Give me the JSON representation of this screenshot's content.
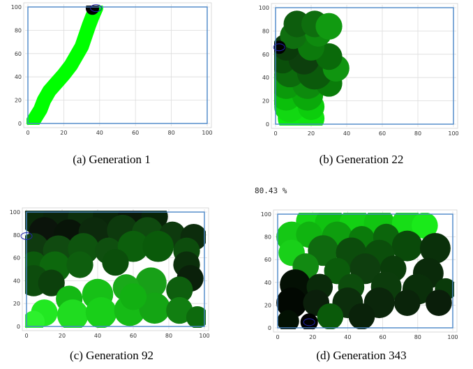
{
  "chart_data": [
    {
      "type": "scatter",
      "caption": "(a) Generation 1",
      "xlim": [
        0,
        100
      ],
      "ylim": [
        0,
        100
      ],
      "xticks": [
        0,
        20,
        40,
        60,
        80,
        100
      ],
      "yticks": [
        0,
        20,
        40,
        60,
        80,
        100
      ],
      "grid": true,
      "border_color": "#4a86c8",
      "robot": [
        38,
        99
      ],
      "blobs": [
        {
          "path": [
            [
              3,
              2
            ],
            [
              7,
              12
            ],
            [
              9,
              20
            ],
            [
              12,
              28
            ],
            [
              16,
              35
            ],
            [
              20,
              42
            ],
            [
              24,
              50
            ],
            [
              27,
              58
            ],
            [
              30,
              66
            ],
            [
              32,
              75
            ],
            [
              34,
              84
            ],
            [
              36,
              92
            ],
            [
              38,
              99
            ]
          ],
          "r": 4,
          "color": "#00ff00"
        }
      ],
      "visits": [
        {
          "x": 36,
          "y": 99,
          "r": 3,
          "color": "#000000"
        }
      ]
    },
    {
      "type": "scatter",
      "caption": "(b) Generation 22",
      "xlim": [
        0,
        100
      ],
      "ylim": [
        0,
        100
      ],
      "xticks": [
        0,
        20,
        40,
        60,
        80,
        100
      ],
      "yticks": [
        0,
        20,
        40,
        60,
        80,
        100
      ],
      "grid": true,
      "border_color": "#4a86c8",
      "robot": [
        2,
        66
      ],
      "blobs": [],
      "visits": [
        {
          "x": 10,
          "y": 5,
          "r": 7,
          "color": "#0aef0a"
        },
        {
          "x": 20,
          "y": 5,
          "r": 6,
          "color": "#10e510"
        },
        {
          "x": 8,
          "y": 15,
          "r": 7,
          "color": "#12d812"
        },
        {
          "x": 20,
          "y": 15,
          "r": 6,
          "color": "#0ccd0c"
        },
        {
          "x": 6,
          "y": 25,
          "r": 7,
          "color": "#0bbf0b"
        },
        {
          "x": 18,
          "y": 25,
          "r": 7,
          "color": "#0aa90a"
        },
        {
          "x": 6,
          "y": 35,
          "r": 7,
          "color": "#0b9a0b"
        },
        {
          "x": 18,
          "y": 35,
          "r": 7,
          "color": "#0d8a0d"
        },
        {
          "x": 30,
          "y": 35,
          "r": 6,
          "color": "#0a7c0a"
        },
        {
          "x": 8,
          "y": 45,
          "r": 7,
          "color": "#0c6b0c"
        },
        {
          "x": 22,
          "y": 45,
          "r": 8,
          "color": "#0b5a0b"
        },
        {
          "x": 34,
          "y": 48,
          "r": 6,
          "color": "#109510"
        },
        {
          "x": 4,
          "y": 55,
          "r": 6,
          "color": "#0a4f0a"
        },
        {
          "x": 16,
          "y": 56,
          "r": 7,
          "color": "#0d3f0d"
        },
        {
          "x": 30,
          "y": 58,
          "r": 6,
          "color": "#0a6a0a"
        },
        {
          "x": 6,
          "y": 66,
          "r": 6,
          "color": "#0a3a0a"
        },
        {
          "x": 20,
          "y": 66,
          "r": 6,
          "color": "#0c7a0c"
        },
        {
          "x": 10,
          "y": 76,
          "r": 6,
          "color": "#0f6f0f"
        },
        {
          "x": 24,
          "y": 78,
          "r": 6,
          "color": "#0e8a0e"
        },
        {
          "x": 12,
          "y": 86,
          "r": 6,
          "color": "#0d5d0d"
        },
        {
          "x": 22,
          "y": 86,
          "r": 6,
          "color": "#0e6e0e"
        },
        {
          "x": 30,
          "y": 84,
          "r": 6,
          "color": "#119a11"
        },
        {
          "x": 2,
          "y": 66,
          "r": 3,
          "color": "#000000"
        }
      ]
    },
    {
      "type": "scatter",
      "caption": "(c) Generation 92",
      "xlim": [
        0,
        100
      ],
      "ylim": [
        0,
        100
      ],
      "xticks": [
        0,
        20,
        40,
        60,
        80,
        100
      ],
      "yticks": [
        0,
        20,
        40,
        60,
        80,
        100
      ],
      "grid": true,
      "border_color": "#4a86c8",
      "robot": [
        0,
        79
      ],
      "blobs": [],
      "visits": [
        {
          "x": 5,
          "y": 95,
          "r": 7,
          "color": "#0a2a0a"
        },
        {
          "x": 18,
          "y": 95,
          "r": 7,
          "color": "#0b240b"
        },
        {
          "x": 32,
          "y": 95,
          "r": 7,
          "color": "#0c300c"
        },
        {
          "x": 46,
          "y": 96,
          "r": 7,
          "color": "#0a260a"
        },
        {
          "x": 60,
          "y": 96,
          "r": 7,
          "color": "#0a1a0a"
        },
        {
          "x": 72,
          "y": 96,
          "r": 6,
          "color": "#082408"
        },
        {
          "x": 10,
          "y": 82,
          "r": 7,
          "color": "#0b140b"
        },
        {
          "x": 24,
          "y": 80,
          "r": 7,
          "color": "#081408"
        },
        {
          "x": 38,
          "y": 82,
          "r": 7,
          "color": "#0c2a0c"
        },
        {
          "x": 54,
          "y": 84,
          "r": 7,
          "color": "#0d3a0d"
        },
        {
          "x": 68,
          "y": 82,
          "r": 7,
          "color": "#0f4a0f"
        },
        {
          "x": 82,
          "y": 80,
          "r": 6,
          "color": "#0e3a0e"
        },
        {
          "x": 94,
          "y": 78,
          "r": 6,
          "color": "#0c2c0c"
        },
        {
          "x": 4,
          "y": 68,
          "r": 7,
          "color": "#0f3a0f"
        },
        {
          "x": 18,
          "y": 66,
          "r": 7,
          "color": "#104a10"
        },
        {
          "x": 32,
          "y": 68,
          "r": 7,
          "color": "#0e540e"
        },
        {
          "x": 46,
          "y": 66,
          "r": 6,
          "color": "#0f4f0f"
        },
        {
          "x": 60,
          "y": 70,
          "r": 7,
          "color": "#0c5f0c"
        },
        {
          "x": 74,
          "y": 70,
          "r": 7,
          "color": "#0a5a0a"
        },
        {
          "x": 90,
          "y": 66,
          "r": 6,
          "color": "#0d4d0d"
        },
        {
          "x": 4,
          "y": 54,
          "r": 6,
          "color": "#0c5a0c"
        },
        {
          "x": 16,
          "y": 52,
          "r": 7,
          "color": "#0d680d"
        },
        {
          "x": 30,
          "y": 54,
          "r": 6,
          "color": "#0e5e0e"
        },
        {
          "x": 50,
          "y": 56,
          "r": 6,
          "color": "#0b4e0b"
        },
        {
          "x": 90,
          "y": 54,
          "r": 6,
          "color": "#0b2f0b"
        },
        {
          "x": 4,
          "y": 40,
          "r": 7,
          "color": "#0d4c0d"
        },
        {
          "x": 14,
          "y": 38,
          "r": 6,
          "color": "#0c400c"
        },
        {
          "x": 92,
          "y": 42,
          "r": 6,
          "color": "#0a200a"
        },
        {
          "x": 86,
          "y": 32,
          "r": 6,
          "color": "#0e5e0e"
        },
        {
          "x": 70,
          "y": 38,
          "r": 7,
          "color": "#18a018"
        },
        {
          "x": 56,
          "y": 34,
          "r": 6,
          "color": "#1aaa1a"
        },
        {
          "x": 40,
          "y": 28,
          "r": 7,
          "color": "#17c017"
        },
        {
          "x": 24,
          "y": 24,
          "r": 6,
          "color": "#14b814"
        },
        {
          "x": 10,
          "y": 12,
          "r": 6,
          "color": "#22e822"
        },
        {
          "x": 26,
          "y": 10,
          "r": 7,
          "color": "#20dc20"
        },
        {
          "x": 42,
          "y": 12,
          "r": 7,
          "color": "#19cf19"
        },
        {
          "x": 58,
          "y": 14,
          "r": 7,
          "color": "#16bb16"
        },
        {
          "x": 72,
          "y": 16,
          "r": 7,
          "color": "#14a514"
        },
        {
          "x": 86,
          "y": 14,
          "r": 6,
          "color": "#117f11"
        },
        {
          "x": 96,
          "y": 8,
          "r": 5,
          "color": "#0d6a0d"
        },
        {
          "x": 60,
          "y": 26,
          "r": 6,
          "color": "#12b012"
        },
        {
          "x": 4,
          "y": 4,
          "r": 5,
          "color": "#2df02d"
        }
      ]
    },
    {
      "type": "scatter",
      "caption": "(d) Generation 343",
      "annotation": "80.43 %",
      "xlim": [
        0,
        100
      ],
      "ylim": [
        0,
        100
      ],
      "xticks": [
        0,
        20,
        40,
        60,
        80,
        100
      ],
      "yticks": [
        0,
        20,
        40,
        60,
        80,
        100
      ],
      "grid": true,
      "border_color": "#4a86c8",
      "robot": [
        18,
        5
      ],
      "blobs": [],
      "visits": [
        {
          "x": 18,
          "y": 94,
          "r": 6,
          "color": "#16d516"
        },
        {
          "x": 30,
          "y": 92,
          "r": 7,
          "color": "#10c210"
        },
        {
          "x": 44,
          "y": 92,
          "r": 7,
          "color": "#13d013"
        },
        {
          "x": 58,
          "y": 92,
          "r": 7,
          "color": "#11c511"
        },
        {
          "x": 74,
          "y": 92,
          "r": 7,
          "color": "#17dd17"
        },
        {
          "x": 84,
          "y": 90,
          "r": 6,
          "color": "#1aea1a"
        },
        {
          "x": 8,
          "y": 80,
          "r": 7,
          "color": "#15c815"
        },
        {
          "x": 18,
          "y": 82,
          "r": 6,
          "color": "#10b410"
        },
        {
          "x": 34,
          "y": 80,
          "r": 7,
          "color": "#0e9e0e"
        },
        {
          "x": 48,
          "y": 78,
          "r": 6,
          "color": "#0b7a0b"
        },
        {
          "x": 62,
          "y": 80,
          "r": 6,
          "color": "#0c650c"
        },
        {
          "x": 74,
          "y": 72,
          "r": 7,
          "color": "#0a4a0a"
        },
        {
          "x": 90,
          "y": 70,
          "r": 7,
          "color": "#0a300a"
        },
        {
          "x": 8,
          "y": 66,
          "r": 6,
          "color": "#19d019"
        },
        {
          "x": 26,
          "y": 68,
          "r": 7,
          "color": "#0f6a0f"
        },
        {
          "x": 42,
          "y": 66,
          "r": 7,
          "color": "#0c4c0c"
        },
        {
          "x": 58,
          "y": 64,
          "r": 7,
          "color": "#0b4e0b"
        },
        {
          "x": 16,
          "y": 54,
          "r": 6,
          "color": "#128a12"
        },
        {
          "x": 34,
          "y": 50,
          "r": 6,
          "color": "#0b5c0b"
        },
        {
          "x": 50,
          "y": 52,
          "r": 7,
          "color": "#0e3e0e"
        },
        {
          "x": 66,
          "y": 52,
          "r": 6,
          "color": "#0a3c0a"
        },
        {
          "x": 86,
          "y": 48,
          "r": 7,
          "color": "#0a2a0a"
        },
        {
          "x": 10,
          "y": 38,
          "r": 7,
          "color": "#041004"
        },
        {
          "x": 24,
          "y": 36,
          "r": 6,
          "color": "#0a2a0a"
        },
        {
          "x": 42,
          "y": 36,
          "r": 6,
          "color": "#0d4d0d"
        },
        {
          "x": 62,
          "y": 36,
          "r": 7,
          "color": "#0c3c0c"
        },
        {
          "x": 80,
          "y": 34,
          "r": 7,
          "color": "#0a2f0a"
        },
        {
          "x": 96,
          "y": 34,
          "r": 5,
          "color": "#0a3a0a"
        },
        {
          "x": 8,
          "y": 22,
          "r": 7,
          "color": "#020802"
        },
        {
          "x": 22,
          "y": 22,
          "r": 6,
          "color": "#0b1f0b"
        },
        {
          "x": 40,
          "y": 22,
          "r": 7,
          "color": "#0c2e0c"
        },
        {
          "x": 58,
          "y": 22,
          "r": 7,
          "color": "#0b260b"
        },
        {
          "x": 74,
          "y": 22,
          "r": 6,
          "color": "#0a240a"
        },
        {
          "x": 92,
          "y": 22,
          "r": 6,
          "color": "#0a1e0a"
        },
        {
          "x": 30,
          "y": 10,
          "r": 6,
          "color": "#0a5a0a"
        },
        {
          "x": 48,
          "y": 10,
          "r": 6,
          "color": "#0a220a"
        },
        {
          "x": 6,
          "y": 6,
          "r": 5,
          "color": "#031103"
        },
        {
          "x": 18,
          "y": 5,
          "r": 4,
          "color": "#000000"
        }
      ]
    }
  ]
}
